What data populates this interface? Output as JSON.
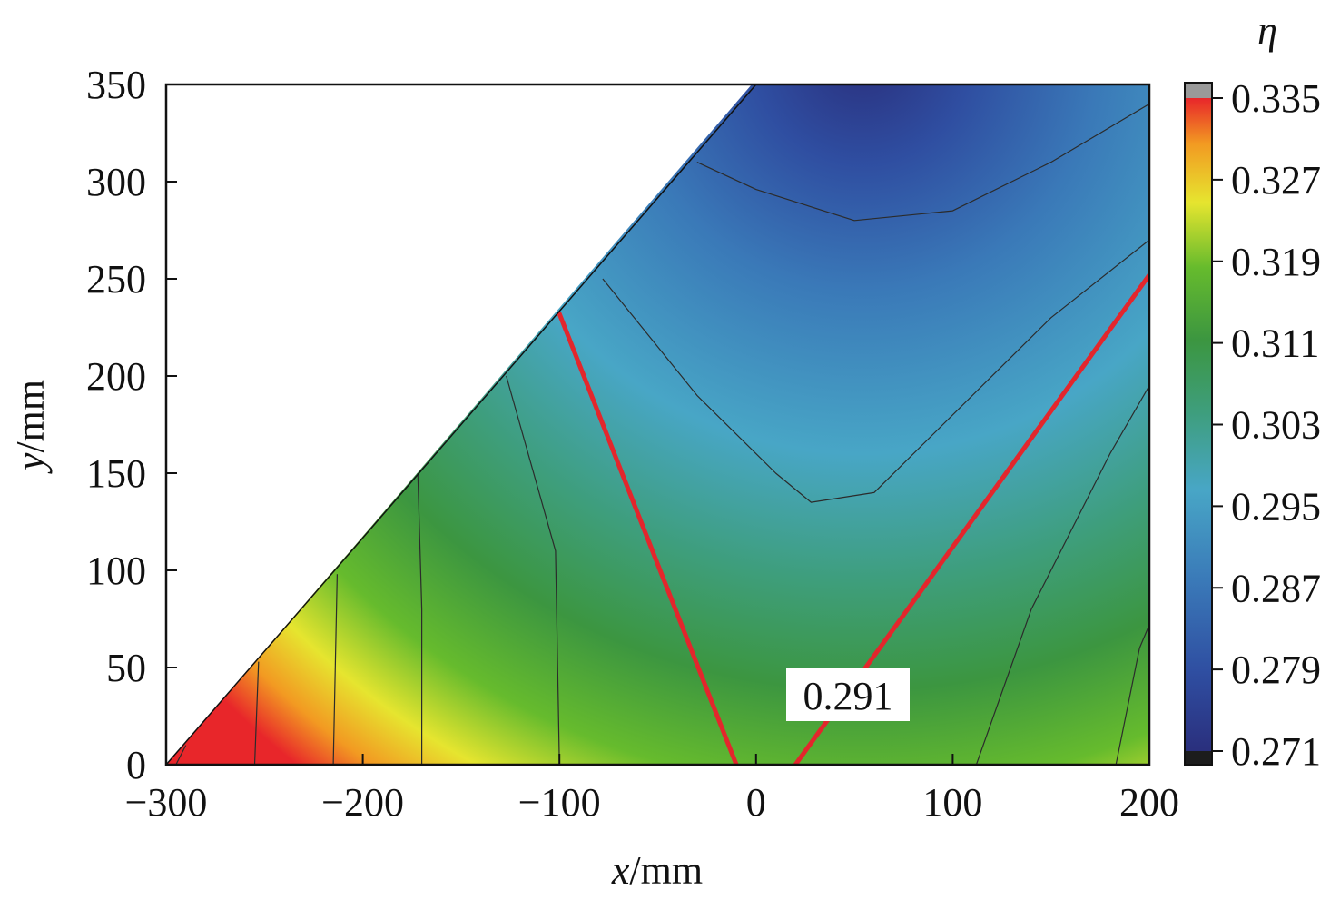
{
  "chart_data": {
    "type": "heatmap",
    "title": "",
    "xlabel_var": "x",
    "xlabel_unit": "/mm",
    "ylabel_var": "y",
    "ylabel_unit": "/mm",
    "xlim": [
      -300,
      200
    ],
    "ylim": [
      0,
      350
    ],
    "x_ticks": [
      -300,
      -200,
      -100,
      0,
      100,
      200
    ],
    "x_tick_labels": [
      "−300",
      "−200",
      "−100",
      "0",
      "100",
      "200"
    ],
    "y_ticks": [
      0,
      50,
      100,
      150,
      200,
      250,
      300,
      350
    ],
    "y_tick_labels": [
      "0",
      "50",
      "100",
      "150",
      "200",
      "250",
      "300",
      "350"
    ],
    "domain_edge_line": [
      [
        -300,
        0
      ],
      [
        0,
        350
      ]
    ],
    "colorbar": {
      "title": "η",
      "min": 0.271,
      "max": 0.335,
      "ticks": [
        0.335,
        0.327,
        0.319,
        0.311,
        0.303,
        0.295,
        0.287,
        0.279,
        0.271
      ],
      "tick_labels": [
        "0.335",
        "0.327",
        "0.319",
        "0.311",
        "0.303",
        "0.295",
        "0.287",
        "0.279",
        "0.271"
      ],
      "colors": [
        "#2a2f7d",
        "#2f4ea1",
        "#3a79b8",
        "#48a6c6",
        "#3e9e7c",
        "#3c9640",
        "#66bb2d",
        "#e6e52f",
        "#f29a22",
        "#e8262a"
      ]
    },
    "highlight_contour": {
      "level": 0.291,
      "label": "0.291",
      "color": "#e3262c",
      "left_branch": [
        [
          -10,
          0
        ],
        [
          -100,
          232
        ]
      ],
      "right_branch": [
        [
          20,
          0
        ],
        [
          200,
          252
        ]
      ]
    },
    "contour_lines": [
      [
        [
          -295,
          0
        ],
        [
          -290,
          10
        ]
      ],
      [
        [
          -255,
          0
        ],
        [
          -253,
          53
        ]
      ],
      [
        [
          -215,
          0
        ],
        [
          -213,
          98
        ]
      ],
      [
        [
          -170,
          0
        ],
        [
          -170,
          80
        ],
        [
          -172,
          150
        ]
      ],
      [
        [
          -100,
          0
        ],
        [
          -102,
          110
        ],
        [
          -127,
          200
        ]
      ],
      [
        [
          -78,
          250
        ],
        [
          -30,
          190
        ],
        [
          10,
          150
        ],
        [
          28,
          135
        ],
        [
          60,
          140
        ],
        [
          150,
          230
        ],
        [
          200,
          270
        ]
      ],
      [
        [
          -30,
          310
        ],
        [
          0,
          296
        ],
        [
          50,
          280
        ],
        [
          100,
          285
        ],
        [
          150,
          310
        ],
        [
          200,
          340
        ]
      ],
      [
        [
          112,
          0
        ],
        [
          140,
          80
        ],
        [
          180,
          160
        ],
        [
          200,
          195
        ]
      ],
      [
        [
          183,
          0
        ],
        [
          195,
          60
        ],
        [
          200,
          72
        ]
      ]
    ]
  }
}
